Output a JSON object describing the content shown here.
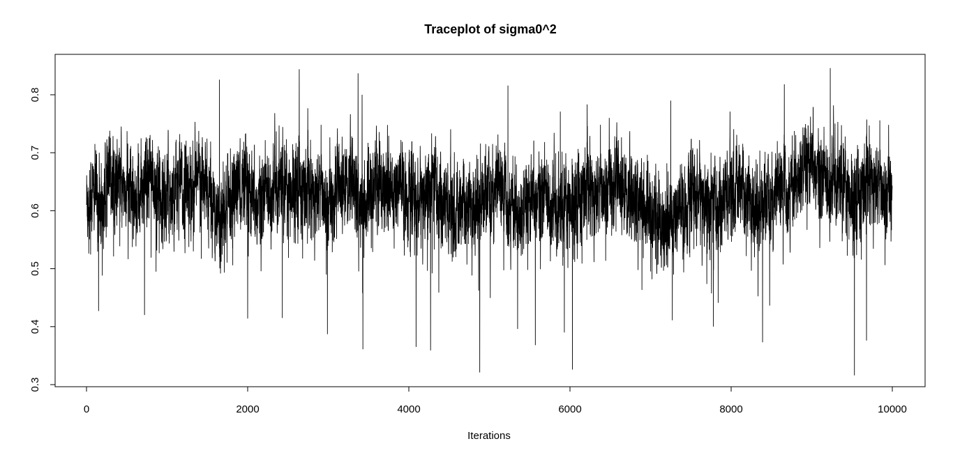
{
  "chart_data": {
    "type": "line",
    "title": "Traceplot of sigma0^2",
    "xlabel": "Iterations",
    "ylabel": "",
    "xlim": [
      0,
      10000
    ],
    "ylim": [
      0.32,
      0.85
    ],
    "x_ticks": [
      "0",
      "2000",
      "4000",
      "6000",
      "8000",
      "10000"
    ],
    "y_ticks": [
      "0.3",
      "0.4",
      "0.5",
      "0.6",
      "0.7",
      "0.8"
    ],
    "grid": false,
    "legend": "none",
    "color": "#000000",
    "n_iterations": 10000,
    "summary": {
      "center": 0.64,
      "typical_range": [
        0.55,
        0.72
      ],
      "min": 0.316,
      "max": 0.846
    },
    "series": [
      {
        "x": [
          0,
          100,
          200,
          300,
          400,
          500,
          600,
          700,
          800,
          900,
          1000,
          1100,
          1200,
          1300,
          1400,
          1500,
          1600,
          1700,
          1800,
          1900,
          2000,
          2100,
          2200,
          2300,
          2400,
          2500,
          2600,
          2700,
          2800,
          2900,
          3000,
          3100,
          3200,
          3300,
          3400,
          3500,
          3600,
          3700,
          3800,
          3900,
          4000,
          4100,
          4200,
          4300,
          4400,
          4500,
          4600,
          4700,
          4800,
          4900,
          5000,
          5100,
          5200,
          5300,
          5400,
          5500,
          5600,
          5700,
          5800,
          5900,
          6000,
          6100,
          6200,
          6300,
          6400,
          6500,
          6600,
          6700,
          6800,
          6900,
          7000,
          7100,
          7200,
          7300,
          7400,
          7500,
          7600,
          7700,
          7800,
          7900,
          8000,
          8100,
          8200,
          8300,
          8400,
          8500,
          8600,
          8700,
          8800,
          8900,
          9000,
          9100,
          9200,
          9300,
          9400,
          9500,
          9600,
          9700,
          9800,
          9900,
          10000
        ],
        "values": [
          0.62,
          0.63,
          0.61,
          0.66,
          0.65,
          0.64,
          0.62,
          0.63,
          0.66,
          0.64,
          0.62,
          0.65,
          0.63,
          0.64,
          0.66,
          0.63,
          0.61,
          0.59,
          0.62,
          0.65,
          0.62,
          0.6,
          0.63,
          0.64,
          0.65,
          0.63,
          0.66,
          0.64,
          0.62,
          0.63,
          0.61,
          0.63,
          0.64,
          0.66,
          0.6,
          0.62,
          0.65,
          0.64,
          0.63,
          0.64,
          0.62,
          0.61,
          0.63,
          0.64,
          0.62,
          0.6,
          0.59,
          0.61,
          0.6,
          0.62,
          0.63,
          0.64,
          0.62,
          0.61,
          0.58,
          0.6,
          0.62,
          0.63,
          0.61,
          0.6,
          0.62,
          0.63,
          0.64,
          0.62,
          0.63,
          0.65,
          0.64,
          0.63,
          0.62,
          0.61,
          0.59,
          0.58,
          0.57,
          0.59,
          0.6,
          0.62,
          0.63,
          0.61,
          0.6,
          0.62,
          0.63,
          0.64,
          0.62,
          0.6,
          0.61,
          0.62,
          0.63,
          0.64,
          0.65,
          0.66,
          0.67,
          0.66,
          0.65,
          0.66,
          0.64,
          0.63,
          0.64,
          0.65,
          0.64,
          0.63,
          0.64
        ],
        "min_points": [
          [
            150,
            0.427
          ],
          [
            720,
            0.42
          ],
          [
            2000,
            0.414
          ],
          [
            2430,
            0.415
          ],
          [
            2990,
            0.387
          ],
          [
            3430,
            0.361
          ],
          [
            4090,
            0.365
          ],
          [
            4270,
            0.359
          ],
          [
            4880,
            0.321
          ],
          [
            5350,
            0.396
          ],
          [
            5570,
            0.368
          ],
          [
            5930,
            0.39
          ],
          [
            6030,
            0.326
          ],
          [
            7270,
            0.411
          ],
          [
            7780,
            0.4
          ],
          [
            8390,
            0.373
          ],
          [
            9530,
            0.316
          ],
          [
            9680,
            0.376
          ]
        ],
        "max_points": [
          [
            1650,
            0.826
          ],
          [
            2640,
            0.844
          ],
          [
            3370,
            0.837
          ],
          [
            3420,
            0.8
          ],
          [
            5230,
            0.816
          ],
          [
            5880,
            0.771
          ],
          [
            7250,
            0.79
          ],
          [
            8660,
            0.818
          ],
          [
            9230,
            0.846
          ]
        ]
      }
    ]
  }
}
